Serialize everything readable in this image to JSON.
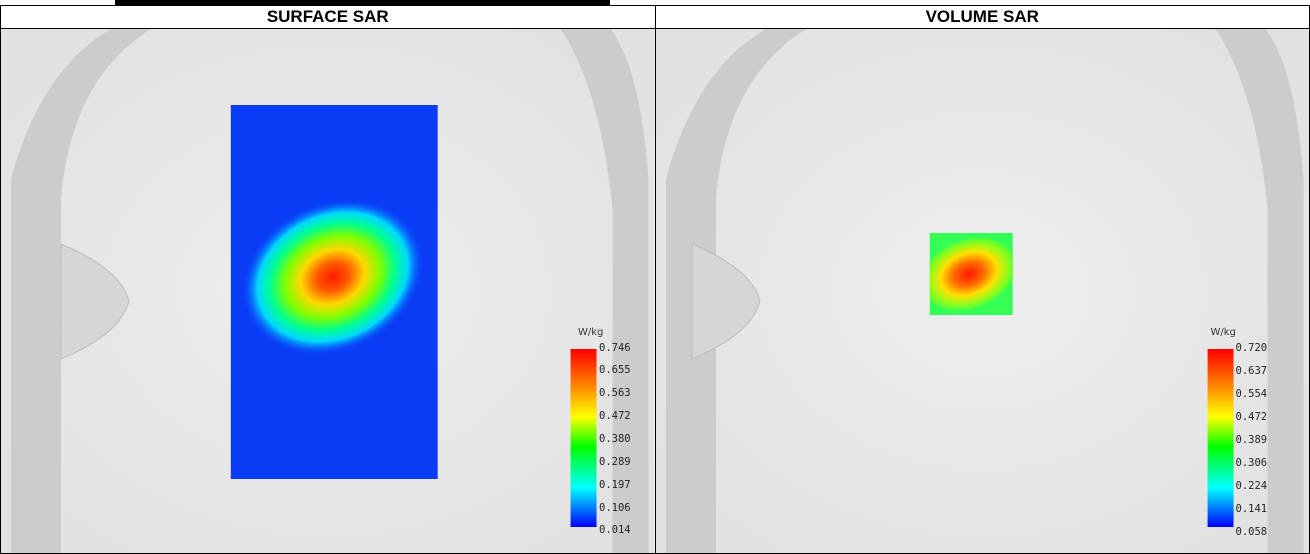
{
  "panels": [
    {
      "title": "SURFACE SAR",
      "legend": {
        "unit": "W/kg",
        "ticks": [
          "0.746",
          "0.655",
          "0.563",
          "0.472",
          "0.380",
          "0.289",
          "0.197",
          "0.106",
          "0.014"
        ]
      }
    },
    {
      "title": "VOLUME SAR",
      "legend": {
        "unit": "W/kg",
        "ticks": [
          "0.720",
          "0.637",
          "0.554",
          "0.472",
          "0.389",
          "0.306",
          "0.224",
          "0.141",
          "0.058"
        ]
      }
    }
  ],
  "colors": {
    "scale_stops": [
      "#ff0000",
      "#ff8000",
      "#ffff00",
      "#00ff00",
      "#00ffff",
      "#0000ff"
    ],
    "background": "#e9e9e9",
    "phantom_shell": "#c6c6c6"
  }
}
